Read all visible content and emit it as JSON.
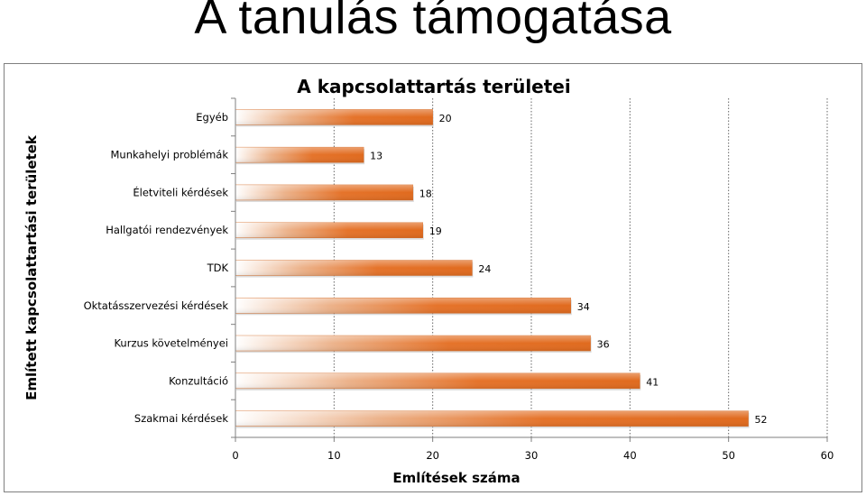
{
  "slide": {
    "title": "A tanulás támogatása"
  },
  "chart_data": {
    "type": "bar",
    "orientation": "horizontal",
    "title": "A kapcsolattartás területei",
    "xlabel": "Említések száma",
    "ylabel": "Említett kapcsolattartási területek",
    "categories": [
      "Egyéb",
      "Munkahelyi problémák",
      "Életviteli kérdések",
      "Hallgatói rendezvények",
      "TDK",
      "Oktatásszervezési kérdések",
      "Kurzus követelményei",
      "Konzultáció",
      "Szakmai kérdések"
    ],
    "values": [
      20,
      13,
      18,
      19,
      24,
      34,
      36,
      41,
      52
    ],
    "xlim": [
      0,
      60
    ],
    "xticks": [
      0,
      10,
      20,
      30,
      40,
      50,
      60
    ],
    "grid": "vertical dotted",
    "legend": "none",
    "colors": {
      "bar": "#E5732A",
      "bar_light": "#FFFFFF",
      "grid": "#555555"
    }
  }
}
